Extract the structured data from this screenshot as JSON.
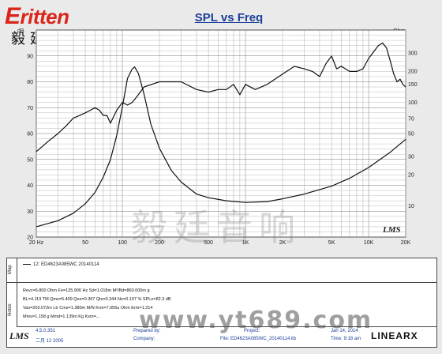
{
  "logo": {
    "word": "ritten",
    "chinese": "毅廷音响"
  },
  "chart_data": {
    "type": "line",
    "title": "SPL vs Freq",
    "x_scale": "log",
    "xlim": [
      20,
      20000
    ],
    "x_ticks": [
      {
        "v": 20,
        "label": "20 Hz"
      },
      {
        "v": 50,
        "label": "50"
      },
      {
        "v": 100,
        "label": "100"
      },
      {
        "v": 200,
        "label": "200"
      },
      {
        "v": 500,
        "label": "500"
      },
      {
        "v": 1000,
        "label": "1K"
      },
      {
        "v": 2000,
        "label": "2K"
      },
      {
        "v": 5000,
        "label": "5K"
      },
      {
        "v": 10000,
        "label": "10K"
      },
      {
        "v": 20000,
        "label": "20K"
      }
    ],
    "y_left": {
      "unit": "dB",
      "ylim": [
        20,
        100
      ],
      "ticks": [
        20,
        30,
        40,
        50,
        60,
        70,
        80,
        90
      ]
    },
    "y_right": {
      "unit": "Ohm",
      "scale": "log",
      "ylim": [
        5,
        500
      ],
      "ticks": [
        {
          "v": 10,
          "label": "10"
        },
        {
          "v": 20,
          "label": "20"
        },
        {
          "v": 30,
          "label": "30"
        },
        {
          "v": 50,
          "label": "50"
        },
        {
          "v": 70,
          "label": "70"
        },
        {
          "v": 100,
          "label": "100"
        },
        {
          "v": 150,
          "label": "150"
        },
        {
          "v": 200,
          "label": "200"
        },
        {
          "v": 300,
          "label": "300"
        }
      ]
    },
    "grid": true,
    "series": [
      {
        "axis": "left",
        "points": [
          [
            20,
            53
          ],
          [
            25,
            57
          ],
          [
            30,
            60
          ],
          [
            35,
            63
          ],
          [
            40,
            66
          ],
          [
            45,
            67
          ],
          [
            50,
            68
          ],
          [
            55,
            69
          ],
          [
            60,
            70
          ],
          [
            65,
            69
          ],
          [
            70,
            67
          ],
          [
            75,
            67
          ],
          [
            80,
            64
          ],
          [
            90,
            69
          ],
          [
            100,
            72
          ],
          [
            110,
            71
          ],
          [
            120,
            72
          ],
          [
            130,
            74
          ],
          [
            150,
            78
          ],
          [
            200,
            80
          ],
          [
            300,
            80
          ],
          [
            400,
            77
          ],
          [
            500,
            76
          ],
          [
            600,
            77
          ],
          [
            700,
            77
          ],
          [
            800,
            79
          ],
          [
            900,
            75
          ],
          [
            1000,
            79
          ],
          [
            1200,
            77
          ],
          [
            1500,
            79
          ],
          [
            2000,
            83
          ],
          [
            2500,
            86
          ],
          [
            3000,
            85
          ],
          [
            3500,
            84
          ],
          [
            4000,
            82
          ],
          [
            4500,
            87
          ],
          [
            5000,
            90
          ],
          [
            5500,
            85
          ],
          [
            6000,
            86
          ],
          [
            7000,
            84
          ],
          [
            8000,
            84
          ],
          [
            9000,
            85
          ],
          [
            10000,
            89
          ],
          [
            12000,
            94
          ],
          [
            13000,
            95
          ],
          [
            14000,
            93
          ],
          [
            15000,
            88
          ],
          [
            16000,
            83
          ],
          [
            17000,
            80
          ],
          [
            18000,
            81
          ],
          [
            19000,
            79
          ],
          [
            20000,
            78
          ]
        ]
      },
      {
        "axis": "right",
        "points": [
          [
            20,
            6.3
          ],
          [
            30,
            7.2
          ],
          [
            40,
            8.5
          ],
          [
            50,
            10.5
          ],
          [
            60,
            13.5
          ],
          [
            70,
            19
          ],
          [
            80,
            28
          ],
          [
            90,
            48
          ],
          [
            100,
            90
          ],
          [
            110,
            170
          ],
          [
            120,
            210
          ],
          [
            125.9,
            220
          ],
          [
            135,
            190
          ],
          [
            150,
            120
          ],
          [
            170,
            62
          ],
          [
            200,
            36
          ],
          [
            250,
            22
          ],
          [
            300,
            17
          ],
          [
            400,
            13
          ],
          [
            500,
            12
          ],
          [
            700,
            11.2
          ],
          [
            1000,
            10.8
          ],
          [
            1500,
            11
          ],
          [
            2000,
            11.7
          ],
          [
            3000,
            13
          ],
          [
            5000,
            15.5
          ],
          [
            7000,
            18.5
          ],
          [
            10000,
            23.5
          ],
          [
            15000,
            33
          ],
          [
            20000,
            44
          ]
        ]
      }
    ]
  },
  "watermark_cn": "毅廷音响",
  "lms_badge": "LMS",
  "panel": {
    "map_label": "Map",
    "notes_label": "Notes",
    "legend": "12: ED4623A085WC  20140114",
    "notes": [
      "Revc=6.800 Ohm  Fo=125.900 Hz  Sd=1.018m M²/Bd=860.000m g",
      "BL=4.119 TM  Qms=5.409  Qes=0.367  Qts=0.344  No=0.107 %  SPLo=82.3 dB",
      "Vas=203.072m Ltr  Cms=1.380m M/N  Krm=7.655u Ohm  Erm=1.214",
      "Mms=1.158 g  Mmd=1.139m Kg  Kxm=..."
    ],
    "footer": {
      "lms": "LMS",
      "version": "4.5.0.351",
      "date": "二月 12 2005",
      "prepared_label": "Prepared by:",
      "company_label": "Company:",
      "project_label": "Project:",
      "file": "File: ED4623A085WC_20140114.lib",
      "date2": "Jan 14, 2014",
      "time": "Time: 9:18 am"
    }
  },
  "url_watermark": "www.yt689.com",
  "brand": "LINEARX"
}
